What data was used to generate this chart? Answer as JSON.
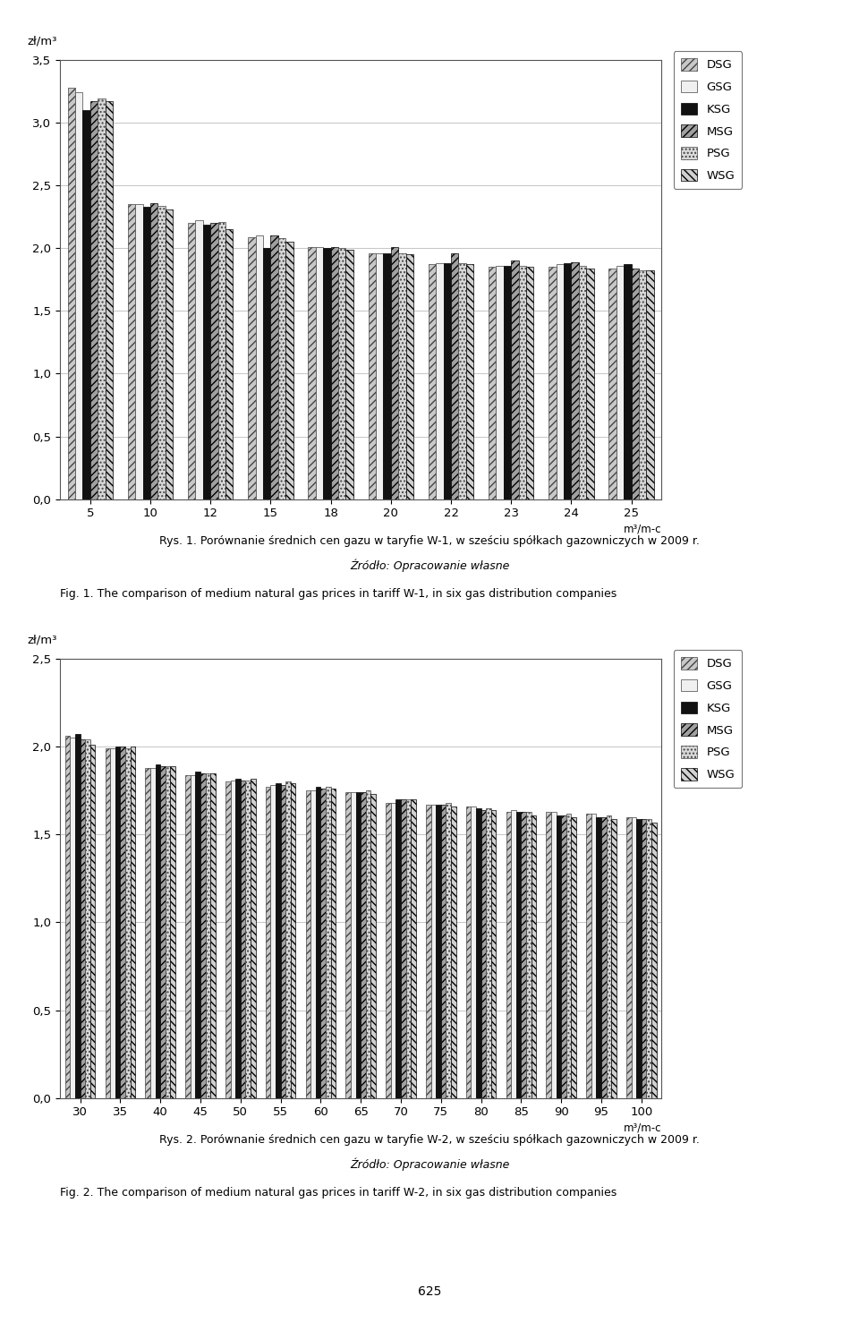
{
  "chart1": {
    "categories": [
      "5",
      "10",
      "12",
      "15",
      "18",
      "20",
      "22",
      "23",
      "24",
      "25"
    ],
    "series": {
      "DSG": [
        3.28,
        2.35,
        2.2,
        2.09,
        2.01,
        1.96,
        1.87,
        1.85,
        1.85,
        1.84
      ],
      "GSG": [
        3.24,
        2.35,
        2.22,
        2.1,
        2.01,
        1.96,
        1.88,
        1.86,
        1.87,
        1.86
      ],
      "KSG": [
        3.1,
        2.33,
        2.19,
        2.0,
        2.0,
        1.96,
        1.88,
        1.86,
        1.88,
        1.87
      ],
      "MSG": [
        3.17,
        2.36,
        2.2,
        2.1,
        2.01,
        2.01,
        1.96,
        1.9,
        1.89,
        1.84
      ],
      "PSG": [
        3.19,
        2.34,
        2.21,
        2.08,
        2.0,
        1.96,
        1.88,
        1.86,
        1.86,
        1.82
      ],
      "WSG": [
        3.17,
        2.31,
        2.15,
        2.05,
        1.99,
        1.95,
        1.87,
        1.85,
        1.84,
        1.82
      ]
    },
    "ylim": [
      0,
      3.5
    ],
    "yticks": [
      0.0,
      0.5,
      1.0,
      1.5,
      2.0,
      2.5,
      3.0,
      3.5
    ],
    "ytick_labels": [
      "0,0",
      "0,5",
      "1,0",
      "1,5",
      "2,0",
      "2,5",
      "3,0",
      "3,5"
    ],
    "ylabel": "zł/m³",
    "xlabel": "m³/m-c"
  },
  "chart2": {
    "categories": [
      "30",
      "35",
      "40",
      "45",
      "50",
      "55",
      "60",
      "65",
      "70",
      "75",
      "80",
      "85",
      "90",
      "95",
      "100"
    ],
    "series": {
      "DSG": [
        2.06,
        1.99,
        1.88,
        1.84,
        1.8,
        1.77,
        1.75,
        1.74,
        1.68,
        1.67,
        1.66,
        1.63,
        1.63,
        1.62,
        1.6
      ],
      "GSG": [
        2.05,
        1.99,
        1.88,
        1.84,
        1.81,
        1.78,
        1.75,
        1.74,
        1.68,
        1.67,
        1.66,
        1.64,
        1.63,
        1.62,
        1.6
      ],
      "KSG": [
        2.07,
        2.0,
        1.9,
        1.86,
        1.82,
        1.79,
        1.77,
        1.74,
        1.7,
        1.67,
        1.65,
        1.63,
        1.61,
        1.6,
        1.59
      ],
      "MSG": [
        2.04,
        2.0,
        1.89,
        1.85,
        1.81,
        1.78,
        1.76,
        1.74,
        1.7,
        1.67,
        1.64,
        1.63,
        1.61,
        1.6,
        1.59
      ],
      "PSG": [
        2.04,
        1.99,
        1.89,
        1.85,
        1.81,
        1.8,
        1.77,
        1.75,
        1.7,
        1.68,
        1.65,
        1.63,
        1.62,
        1.61,
        1.59
      ],
      "WSG": [
        2.01,
        2.0,
        1.89,
        1.85,
        1.82,
        1.79,
        1.76,
        1.73,
        1.7,
        1.66,
        1.64,
        1.61,
        1.6,
        1.59,
        1.57
      ]
    },
    "ylim": [
      0,
      2.5
    ],
    "yticks": [
      0.0,
      0.5,
      1.0,
      1.5,
      2.0,
      2.5
    ],
    "ytick_labels": [
      "0,0",
      "0,5",
      "1,0",
      "1,5",
      "2,0",
      "2,5"
    ],
    "ylabel": "zł/m³",
    "xlabel": "m³/m-c"
  },
  "caption1_pl": "Rys. 1. Porównanie średnich cen gazu w taryfie W-1, w sześciu spółkach gazowniczych w 2009 r.",
  "caption1_pl2": "Źródło: Opracowanie własne",
  "caption1_en": "Fig. 1. The comparison of medium natural gas prices in tariff W-1, in six gas distribution companies",
  "caption2_pl": "Rys. 2. Porównanie średnich cen gazu w taryfie W-2, w sześciu spółkach gazowniczych w 2009 r.",
  "caption2_pl2": "Źródło: Opracowanie własne",
  "caption2_en": "Fig. 2. The comparison of medium natural gas prices in tariff W-2, in six gas distribution companies",
  "page_number": "625",
  "legend_labels": [
    "DSG",
    "GSG",
    "KSG",
    "MSG",
    "PSG",
    "WSG"
  ]
}
